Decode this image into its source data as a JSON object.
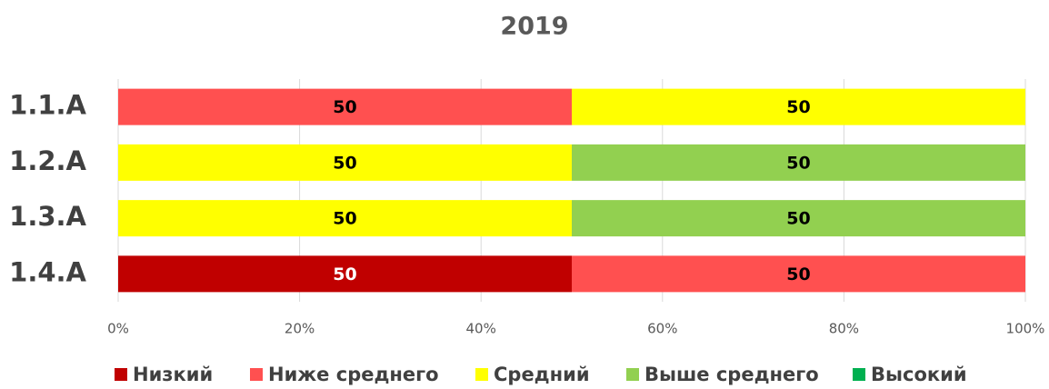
{
  "chart_data": {
    "type": "stacked_barh",
    "title": "2019",
    "categories": [
      "1.1.A",
      "1.2.A",
      "1.3.A",
      "1.4.A"
    ],
    "series": [
      {
        "name": "Низкий",
        "color": "#c00000",
        "values": [
          0,
          0,
          0,
          50
        ]
      },
      {
        "name": "Ниже среднего",
        "color": "#ff5050",
        "values": [
          50,
          0,
          0,
          50
        ]
      },
      {
        "name": "Средний",
        "color": "#ffff00",
        "values": [
          50,
          50,
          50,
          0
        ]
      },
      {
        "name": "Выше среднего",
        "color": "#92d050",
        "values": [
          0,
          50,
          50,
          0
        ]
      },
      {
        "name": "Высокий",
        "color": "#00b050",
        "values": [
          0,
          0,
          0,
          0
        ]
      }
    ],
    "xlim": [
      0,
      100
    ],
    "xticks": [
      {
        "value": 0,
        "label": "0%"
      },
      {
        "value": 20,
        "label": "20%"
      },
      {
        "value": 40,
        "label": "40%"
      },
      {
        "value": 60,
        "label": "60%"
      },
      {
        "value": 80,
        "label": "80%"
      },
      {
        "value": 100,
        "label": "100%"
      }
    ],
    "grid": true,
    "legend": "bottom"
  }
}
